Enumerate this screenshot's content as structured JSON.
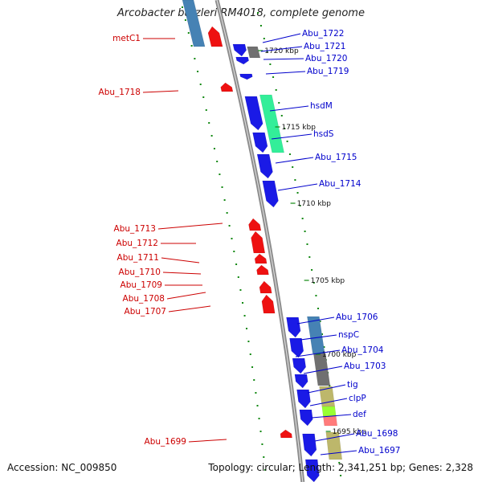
{
  "title": "Arcobacter butzleri RM4018, complete genome",
  "footer": {
    "accession": "Accession: NC_009850",
    "topology": "Topology: circular; Length: 2,341,251 bp; Genes: 2,328"
  },
  "colors": {
    "backbone": "#9a9a9a",
    "forward_gene": "#ee1111",
    "reverse_gene": "#1a1ae6",
    "label_forward": "#cc0000",
    "label_reverse": "#0000cc",
    "cog_steelblue": "#4682b4",
    "cog_green": "#33ee99",
    "cog_gray": "#707070",
    "cog_khaki": "#bdb76b",
    "cog_pink": "#ff7b7b",
    "cog_lime": "#99ff33",
    "ticks": "#118811"
  },
  "scale_labels": [
    "1720 kbp",
    "1715 kbp",
    "1710 kbp",
    "1705 kbp",
    "1700 kbp",
    "1695 kbp"
  ],
  "forward_labels": [
    "metC1",
    "Abu_1718",
    "Abu_1713",
    "Abu_1712",
    "Abu_1711",
    "Abu_1710",
    "Abu_1709",
    "Abu_1708",
    "Abu_1707",
    "Abu_1699"
  ],
  "reverse_labels": [
    "Abu_1722",
    "Abu_1721",
    "Abu_1720",
    "Abu_1719",
    "hsdM",
    "hsdS",
    "Abu_1715",
    "Abu_1714",
    "Abu_1706",
    "nspC",
    "Abu_1704",
    "Abu_1703",
    "tig",
    "clpP",
    "def",
    "Abu_1698",
    "Abu_1697"
  ]
}
